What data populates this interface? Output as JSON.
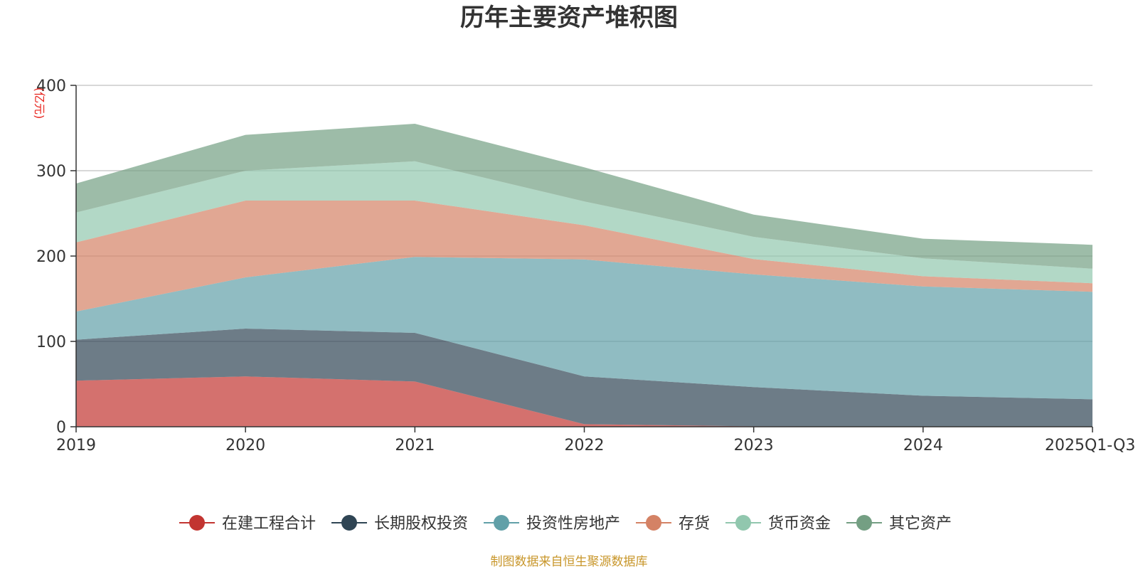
{
  "chart_data": {
    "type": "area",
    "stacked": true,
    "title": "历年主要资产堆积图",
    "unit_label": "(亿元)",
    "categories": [
      "2019",
      "2020",
      "2021",
      "2022",
      "2023",
      "2024",
      "2025Q1-Q3"
    ],
    "ylim": [
      0,
      400
    ],
    "yticks": [
      0,
      100,
      200,
      300,
      400
    ],
    "grid": true,
    "legend_position": "bottom",
    "series": [
      {
        "name": "在建工程合计",
        "color": "#c23531",
        "values": [
          54,
          59,
          53,
          3,
          0.5,
          0.3,
          0.2
        ]
      },
      {
        "name": "长期股权投资",
        "color": "#2f4554",
        "values": [
          48,
          56,
          57,
          56,
          46,
          36,
          32
        ]
      },
      {
        "name": "投资性房地产",
        "color": "#61a0a8",
        "values": [
          33,
          60,
          89,
          137,
          132,
          128,
          126
        ]
      },
      {
        "name": "存货",
        "color": "#d48265",
        "values": [
          81,
          90,
          66,
          40,
          18,
          12,
          10
        ]
      },
      {
        "name": "货币资金",
        "color": "#91c7ae",
        "values": [
          35,
          35,
          46,
          28,
          26,
          21,
          17
        ]
      },
      {
        "name": "其它资产",
        "color": "#749f83",
        "values": [
          34,
          42,
          44,
          40,
          26,
          23,
          28
        ]
      }
    ],
    "source_note": "制图数据来自恒生聚源数据库"
  }
}
